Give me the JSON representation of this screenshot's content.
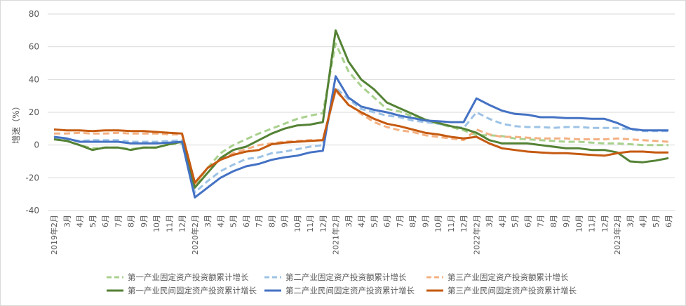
{
  "chart_data": {
    "type": "line",
    "ylabel": "增速（%）",
    "xlabel": "",
    "ylim": [
      -40,
      80
    ],
    "yticks": [
      -40,
      -20,
      0,
      20,
      40,
      60,
      80
    ],
    "grid": true,
    "legend_position": "bottom",
    "categories": [
      "2019年2月",
      "3月",
      "4月",
      "5月",
      "6月",
      "7月",
      "8月",
      "9月",
      "10月",
      "11月",
      "12月",
      "2020年2月",
      "3月",
      "4月",
      "5月",
      "6月",
      "7月",
      "8月",
      "9月",
      "10月",
      "11月",
      "12月",
      "2021年2月",
      "3月",
      "4月",
      "5月",
      "6月",
      "7月",
      "8月",
      "9月",
      "10月",
      "11月",
      "12月",
      "2022年2月",
      "3月",
      "4月",
      "5月",
      "6月",
      "7月",
      "8月",
      "9月",
      "10月",
      "11月",
      "12月",
      "2023年2月",
      "3月",
      "4月",
      "5月",
      "6月"
    ],
    "series": [
      {
        "name": "第一产业固定资产投资额累计增长",
        "color": "#a9d18e",
        "dash": true,
        "values": [
          3.5,
          2.5,
          0,
          -2,
          -1.5,
          -1.5,
          -2.5,
          -1.5,
          -1.5,
          0.5,
          1,
          -25,
          -14,
          -5,
          0,
          3.5,
          7,
          10,
          13,
          16,
          18,
          19.5,
          62,
          45,
          36,
          29,
          22,
          20.5,
          17.5,
          15,
          13,
          11,
          9,
          6,
          6,
          5.5,
          4,
          3.5,
          3,
          2.5,
          2,
          2,
          1.5,
          1,
          1,
          0.5,
          0,
          0,
          0
        ]
      },
      {
        "name": "第二产业固定资产投资额累计增长",
        "color": "#9dc3e6",
        "dash": true,
        "values": [
          4.5,
          3.5,
          2.5,
          3,
          3,
          3,
          2,
          2,
          2,
          2.5,
          3,
          -29,
          -22,
          -16,
          -12,
          -8.5,
          -7.5,
          -5,
          -4,
          -2.5,
          -1,
          0,
          35,
          28,
          22,
          20,
          18,
          17,
          15,
          14,
          13,
          11.5,
          10.5,
          20,
          16,
          13,
          11.5,
          11,
          11,
          10.5,
          11,
          11,
          10.5,
          10.5,
          10.5,
          9.5,
          8.5,
          8.5,
          8.5
        ]
      },
      {
        "name": "第三产业固定资产投资额累计增长",
        "color": "#f4b183",
        "dash": true,
        "values": [
          7,
          7,
          7.5,
          7,
          7,
          7.5,
          7,
          7,
          7,
          6.5,
          6.5,
          -24,
          -14,
          -9,
          -5,
          -2.5,
          0,
          1,
          2,
          2.5,
          3,
          3,
          33,
          25,
          19,
          14,
          11,
          9,
          8,
          6,
          5,
          4,
          3,
          9.5,
          6.5,
          5,
          5,
          4.5,
          4,
          4,
          4,
          3.5,
          3.5,
          3.5,
          4,
          3.5,
          3,
          2.5,
          2
        ]
      },
      {
        "name": "第一产业民间固定资产投资累计增长",
        "color": "#548235",
        "dash": false,
        "values": [
          3.5,
          2.5,
          0,
          -3,
          -1.5,
          -1.5,
          -3,
          -1.5,
          -1.5,
          0.5,
          2,
          -26,
          -17,
          -8,
          -3,
          -1,
          3,
          7,
          10,
          12,
          12.5,
          14,
          70,
          51,
          40,
          34,
          26,
          22.5,
          19,
          15.5,
          13.5,
          11.5,
          10,
          7.5,
          3,
          1,
          1,
          1,
          0,
          -1,
          -2,
          -2,
          -3,
          -3,
          -4.5,
          -10,
          -10.5,
          -9.5,
          -8
        ]
      },
      {
        "name": "第二产业民间固定资产投资累计增长",
        "color": "#4472c4",
        "dash": false,
        "values": [
          5,
          4,
          2,
          2,
          2,
          2,
          1,
          1,
          1,
          1.5,
          2,
          -32,
          -26,
          -20,
          -16,
          -13,
          -11.5,
          -9,
          -7.5,
          -6.5,
          -4.5,
          -3.5,
          42,
          29,
          23.5,
          21.5,
          20,
          18,
          16.5,
          15,
          14.5,
          14,
          14,
          28.5,
          24.5,
          21,
          19,
          18.5,
          17,
          17,
          16.5,
          16.5,
          16,
          16,
          13.5,
          10,
          9,
          9,
          9
        ]
      },
      {
        "name": "第三产业民间固定资产投资累计增长",
        "color": "#c55a11",
        "dash": false,
        "values": [
          9.5,
          9,
          9,
          8.5,
          9,
          9,
          8.5,
          8.5,
          8,
          7.5,
          7,
          -23,
          -14,
          -9,
          -6,
          -4,
          -3,
          0.5,
          1.5,
          2,
          2.5,
          3,
          34,
          24.5,
          20,
          16,
          13,
          11.5,
          9.5,
          7.5,
          6.5,
          5,
          4,
          5,
          1,
          -2,
          -3,
          -4,
          -4.5,
          -5,
          -5,
          -5.5,
          -6,
          -6.5,
          -5,
          -4,
          -4,
          -4.5,
          -4.5
        ]
      }
    ]
  }
}
